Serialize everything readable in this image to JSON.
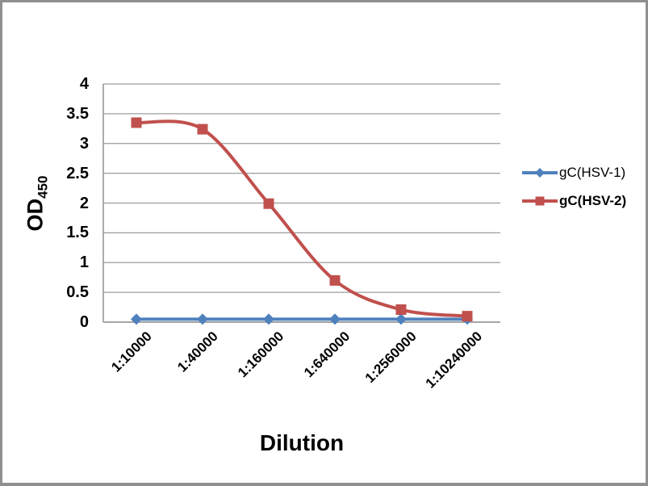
{
  "frame": {
    "background": "#ffffff",
    "border_color": "#8f8f8f"
  },
  "chart_data": {
    "type": "line",
    "title": "",
    "xlabel": "Dilution",
    "ylabel": "OD",
    "ylabel_sub": "450",
    "categories": [
      "1:10000",
      "1:40000",
      "1:160000",
      "1:640000",
      "1:2560000",
      "1:10240000"
    ],
    "series": [
      {
        "name": "gC(HSV-1)",
        "values": [
          0.05,
          0.05,
          0.05,
          0.05,
          0.05,
          0.05
        ],
        "color": "#4F81BD",
        "marker": "diamond",
        "legend_bold": false
      },
      {
        "name": "gC(HSV-2)",
        "values": [
          3.35,
          3.24,
          1.99,
          0.7,
          0.21,
          0.1
        ],
        "color": "#C0504D",
        "marker": "square",
        "legend_bold": true
      }
    ],
    "ylim": [
      0,
      4
    ],
    "ytick_step": 0.5,
    "yticks": [
      "0",
      "0.5",
      "1",
      "1.5",
      "2",
      "2.5",
      "3",
      "3.5",
      "4"
    ],
    "grid": true,
    "smooth": true,
    "legend_position": "right",
    "gridline_color": "#9d9d9d",
    "axis_color": "#888888",
    "line_width": 4
  }
}
